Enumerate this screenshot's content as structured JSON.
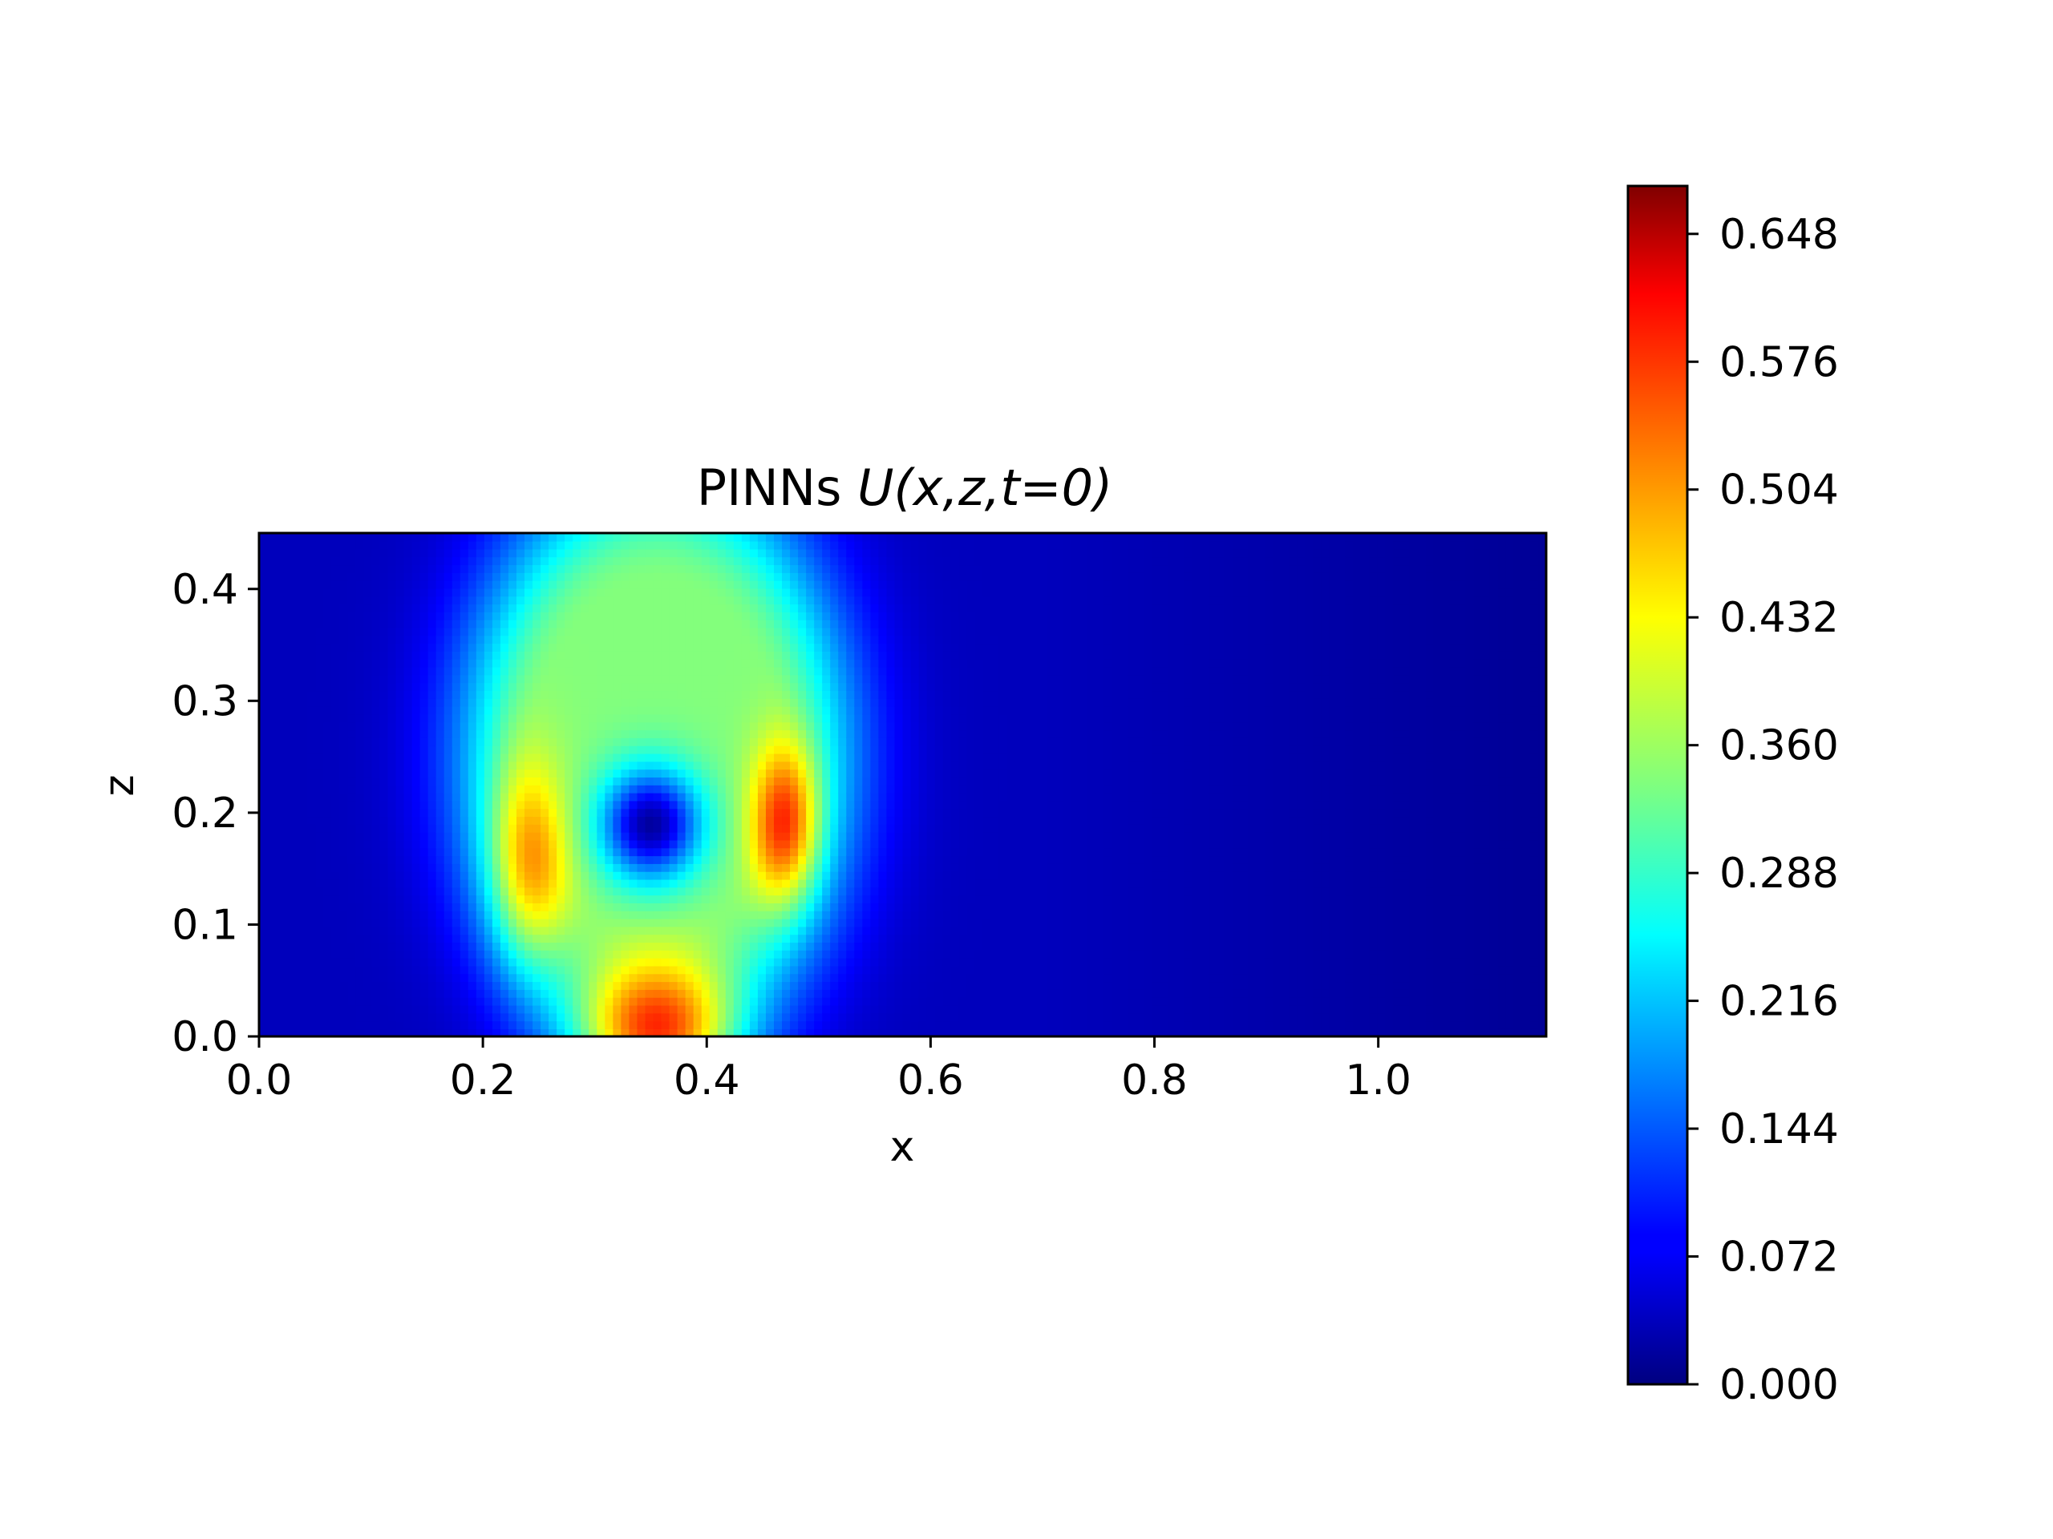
{
  "chart_data": {
    "type": "heatmap",
    "title_prefix": "PINNs ",
    "title_math": "U(x,z,t=0)",
    "xlabel": "x",
    "ylabel": "z",
    "xlim": [
      0,
      1.15
    ],
    "ylim": [
      0,
      0.45
    ],
    "x_ticks": [
      "0.0",
      "0.2",
      "0.4",
      "0.6",
      "0.8",
      "1.0"
    ],
    "y_ticks": [
      "0.0",
      "0.1",
      "0.2",
      "0.3",
      "0.4"
    ],
    "colorbar": {
      "colormap": "jet",
      "range": [
        0,
        0.675
      ],
      "ticks": [
        "0.000",
        "0.072",
        "0.144",
        "0.216",
        "0.288",
        "0.360",
        "0.432",
        "0.504",
        "0.576",
        "0.648"
      ]
    },
    "field_features": [
      {
        "name": "outer ring",
        "x": 0.355,
        "z": 0.25,
        "rx": 0.19,
        "rz": 0.28,
        "value": 0.3
      },
      {
        "name": "bottom peak",
        "x": 0.355,
        "z": 0.0,
        "value": 0.66
      },
      {
        "name": "left lobe",
        "x": 0.24,
        "z": 0.15,
        "value": 0.48
      },
      {
        "name": "right lobe",
        "x": 0.47,
        "z": 0.19,
        "value": 0.54
      },
      {
        "name": "central low",
        "x": 0.35,
        "z": 0.19,
        "value": 0.08
      },
      {
        "name": "background",
        "value": 0.04
      }
    ]
  }
}
